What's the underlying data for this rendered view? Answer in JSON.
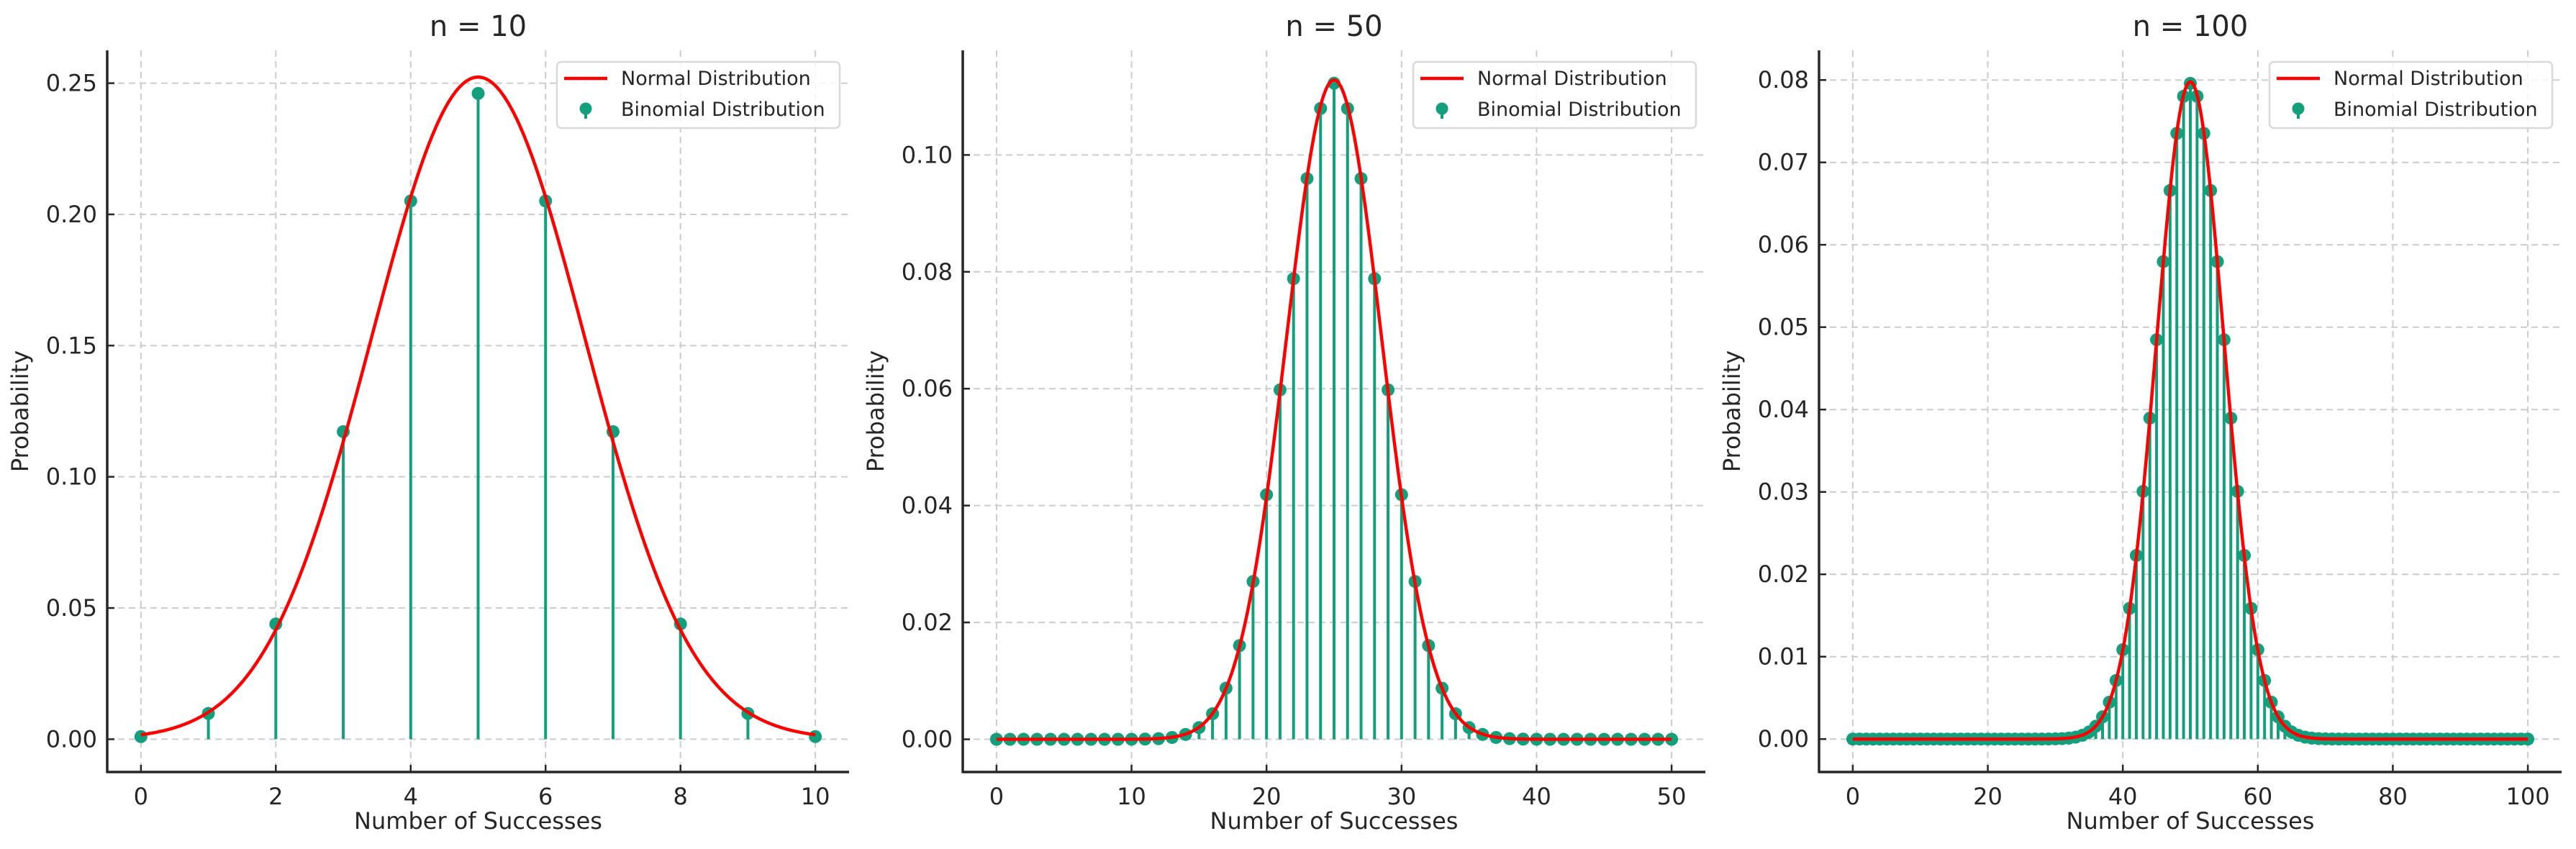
{
  "chart_data": [
    {
      "type": "line+stem",
      "title": "n = 10",
      "n": 10,
      "p": 0.5,
      "xlabel": "Number of Successes",
      "ylabel": "Probability",
      "xlim": [
        -0.5,
        10.5
      ],
      "ylim": [
        -0.0125,
        0.2625
      ],
      "xticks": [
        0,
        2,
        4,
        6,
        8,
        10
      ],
      "xtick_labels": [
        "0",
        "2",
        "4",
        "6",
        "8",
        "10"
      ],
      "yticks": [
        0.0,
        0.05,
        0.1,
        0.15,
        0.2,
        0.25
      ],
      "ytick_labels": [
        "0.00",
        "0.05",
        "0.10",
        "0.15",
        "0.20",
        "0.25"
      ],
      "grid": true,
      "legend": {
        "position": "top-right",
        "entries": [
          "Normal Distribution",
          "Binomial Distribution"
        ]
      },
      "series": [
        {
          "name": "Normal Distribution",
          "kind": "line",
          "color": "#ff0000",
          "mean": 5,
          "std": 1.5811
        },
        {
          "name": "Binomial Distribution",
          "kind": "stem",
          "color": "#12a07c",
          "x": [
            0,
            1,
            2,
            3,
            4,
            5,
            6,
            7,
            8,
            9,
            10
          ],
          "values": [
            0.001,
            0.0098,
            0.0439,
            0.1172,
            0.2051,
            0.2461,
            0.2051,
            0.1172,
            0.0439,
            0.0098,
            0.001
          ]
        }
      ]
    },
    {
      "type": "line+stem",
      "title": "n = 50",
      "n": 50,
      "p": 0.5,
      "xlabel": "Number of Successes",
      "ylabel": "Probability",
      "xlim": [
        -2.5,
        52.5
      ],
      "ylim": [
        -0.0056,
        0.1179
      ],
      "xticks": [
        0,
        10,
        20,
        30,
        40,
        50
      ],
      "xtick_labels": [
        "0",
        "10",
        "20",
        "30",
        "40",
        "50"
      ],
      "yticks": [
        0.0,
        0.02,
        0.04,
        0.06,
        0.08,
        0.1
      ],
      "ytick_labels": [
        "0.00",
        "0.02",
        "0.04",
        "0.06",
        "0.08",
        "0.10"
      ],
      "grid": true,
      "legend": {
        "position": "top-right",
        "entries": [
          "Normal Distribution",
          "Binomial Distribution"
        ]
      },
      "series": [
        {
          "name": "Normal Distribution",
          "kind": "line",
          "color": "#ff0000",
          "mean": 25,
          "std": 3.5355
        },
        {
          "name": "Binomial Distribution",
          "kind": "stem",
          "color": "#12a07c",
          "distribution": "binomial(50, 0.5)",
          "x_range": [
            0,
            50
          ]
        }
      ]
    },
    {
      "type": "line+stem",
      "title": "n = 100",
      "n": 100,
      "p": 0.5,
      "xlabel": "Number of Successes",
      "ylabel": "Probability",
      "xlim": [
        -5,
        105
      ],
      "ylim": [
        -0.004,
        0.0836
      ],
      "xticks": [
        0,
        20,
        40,
        60,
        80,
        100
      ],
      "xtick_labels": [
        "0",
        "20",
        "40",
        "60",
        "80",
        "100"
      ],
      "yticks": [
        0.0,
        0.01,
        0.02,
        0.03,
        0.04,
        0.05,
        0.06,
        0.07,
        0.08
      ],
      "ytick_labels": [
        "0.00",
        "0.01",
        "0.02",
        "0.03",
        "0.04",
        "0.05",
        "0.06",
        "0.07",
        "0.08"
      ],
      "grid": true,
      "legend": {
        "position": "top-right",
        "entries": [
          "Normal Distribution",
          "Binomial Distribution"
        ]
      },
      "series": [
        {
          "name": "Normal Distribution",
          "kind": "line",
          "color": "#ff0000",
          "mean": 50,
          "std": 5.0
        },
        {
          "name": "Binomial Distribution",
          "kind": "stem",
          "color": "#12a07c",
          "distribution": "binomial(100, 0.5)",
          "x_range": [
            0,
            100
          ]
        }
      ]
    }
  ]
}
